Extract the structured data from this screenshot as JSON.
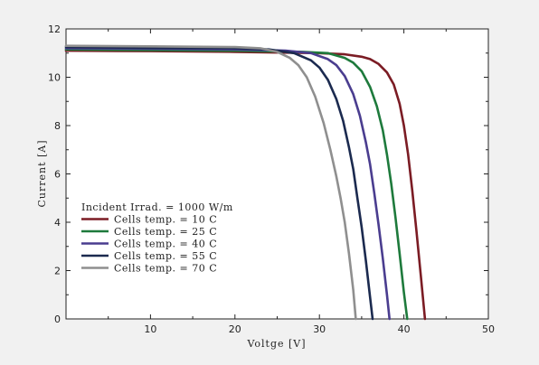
{
  "chart_data": {
    "type": "line",
    "xlabel": "Voltge [V]",
    "ylabel": "Current [A]",
    "xlim": [
      0,
      50
    ],
    "ylim": [
      0,
      12
    ],
    "x_ticks": [
      10,
      20,
      30,
      40,
      50
    ],
    "y_ticks": [
      0,
      2,
      4,
      6,
      8,
      10,
      12
    ],
    "x_tick_labels": [
      "10",
      "20",
      "30",
      "40",
      "50"
    ],
    "y_tick_labels": [
      "0",
      "2",
      "4",
      "6",
      "8",
      "10",
      "12"
    ],
    "grid": false,
    "legend": {
      "placement": "left-middle",
      "title": "Incident Irrad. = 1000 W/m",
      "entries": [
        "Cells temp. = 10   C",
        "Cells temp. = 25   C",
        "Cells temp. = 40   C",
        "Cells temp. = 55   C",
        "Cells temp. = 70   C"
      ]
    },
    "series": [
      {
        "name": "Cells temp. = 10   C",
        "color": "#7b1c24",
        "x": [
          0,
          10,
          20,
          30,
          33,
          35,
          36,
          37,
          38,
          38.8,
          39.5,
          40,
          40.5,
          41,
          41.5,
          42,
          42.5
        ],
        "y": [
          11.1,
          11.08,
          11.05,
          11.0,
          10.95,
          10.85,
          10.75,
          10.55,
          10.2,
          9.7,
          8.9,
          8.0,
          6.8,
          5.3,
          3.6,
          1.8,
          0
        ]
      },
      {
        "name": "Cells temp. = 25   C",
        "color": "#1e7a3c",
        "x": [
          0,
          10,
          20,
          28,
          31,
          33,
          34,
          35,
          36,
          36.8,
          37.5,
          38,
          38.5,
          39,
          39.5,
          40,
          40.4
        ],
        "y": [
          11.15,
          11.12,
          11.1,
          11.05,
          11.0,
          10.8,
          10.6,
          10.25,
          9.6,
          8.8,
          7.8,
          6.8,
          5.6,
          4.2,
          2.7,
          1.1,
          0
        ]
      },
      {
        "name": "Cells temp. = 40   C",
        "color": "#4a3d8f",
        "x": [
          0,
          10,
          20,
          26,
          29,
          31,
          32,
          33,
          34,
          34.8,
          35.5,
          36,
          36.5,
          37,
          37.5,
          38,
          38.3
        ],
        "y": [
          11.2,
          11.18,
          11.15,
          11.1,
          11.0,
          10.75,
          10.5,
          10.05,
          9.3,
          8.4,
          7.3,
          6.4,
          5.2,
          3.9,
          2.5,
          1.0,
          0
        ]
      },
      {
        "name": "Cells temp. = 55   C",
        "color": "#1b2a4f",
        "x": [
          0,
          10,
          20,
          24,
          27,
          29,
          30,
          31,
          32,
          32.8,
          33.5,
          34,
          34.5,
          35,
          35.5,
          36,
          36.3
        ],
        "y": [
          11.25,
          11.22,
          11.2,
          11.15,
          11.0,
          10.7,
          10.4,
          9.9,
          9.1,
          8.2,
          7.1,
          6.2,
          5.0,
          3.8,
          2.4,
          0.9,
          0
        ]
      },
      {
        "name": "Cells temp. = 70   C",
        "color": "#8f8f8f",
        "x": [
          0,
          10,
          20,
          23,
          25,
          26.5,
          27.5,
          28.5,
          29.5,
          30.5,
          31.3,
          32,
          32.5,
          33,
          33.5,
          34,
          34.3
        ],
        "y": [
          11.3,
          11.28,
          11.25,
          11.2,
          11.05,
          10.8,
          10.5,
          10.0,
          9.2,
          8.1,
          7.0,
          5.9,
          5.0,
          4.0,
          2.7,
          1.2,
          0
        ]
      }
    ]
  }
}
